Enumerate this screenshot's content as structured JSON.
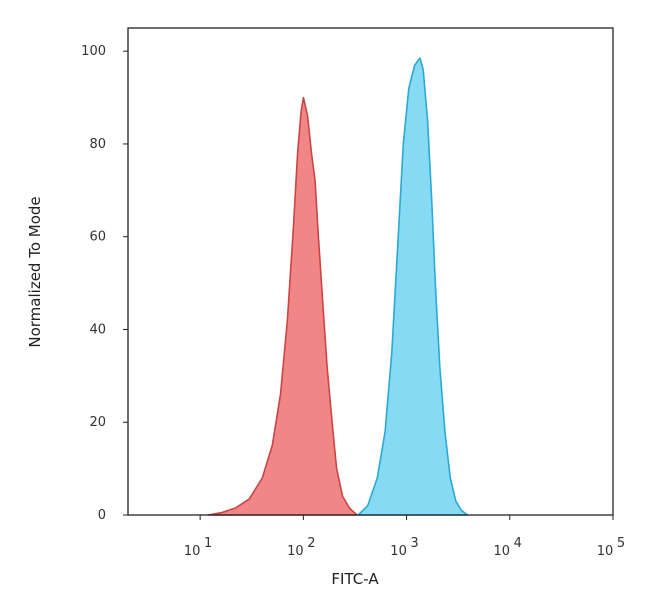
{
  "chart_data": {
    "type": "area",
    "xlabel": "FITC-A",
    "ylabel": "Normalized To Mode",
    "x_scale": "log",
    "xlim": [
      2,
      100000
    ],
    "ylim": [
      0,
      105
    ],
    "grid": false,
    "legend": "none",
    "y_ticks": [
      {
        "value": 0,
        "label": "0"
      },
      {
        "value": 20,
        "label": "20"
      },
      {
        "value": 40,
        "label": "40"
      },
      {
        "value": 60,
        "label": "60"
      },
      {
        "value": 80,
        "label": "80"
      },
      {
        "value": 100,
        "label": "100"
      }
    ],
    "x_ticks": [
      {
        "value": 10,
        "base": "10",
        "exp": "1"
      },
      {
        "value": 100,
        "base": "10",
        "exp": "2"
      },
      {
        "value": 1000,
        "base": "10",
        "exp": "3"
      },
      {
        "value": 10000,
        "base": "10",
        "exp": "4"
      },
      {
        "value": 100000,
        "base": "10",
        "exp": "5"
      }
    ],
    "series": [
      {
        "color": "#f08080",
        "stroke": "#cc4444",
        "points": [
          [
            12,
            0
          ],
          [
            16,
            0.5
          ],
          [
            22,
            1.5
          ],
          [
            30,
            3.5
          ],
          [
            40,
            8
          ],
          [
            50,
            15
          ],
          [
            60,
            26
          ],
          [
            70,
            42
          ],
          [
            80,
            62
          ],
          [
            88,
            78
          ],
          [
            95,
            87
          ],
          [
            100,
            90
          ],
          [
            105,
            88
          ],
          [
            110,
            86
          ],
          [
            120,
            78
          ],
          [
            130,
            72
          ],
          [
            140,
            60
          ],
          [
            155,
            45
          ],
          [
            170,
            32
          ],
          [
            190,
            20
          ],
          [
            210,
            10
          ],
          [
            240,
            4
          ],
          [
            280,
            1.5
          ],
          [
            330,
            0
          ]
        ]
      },
      {
        "color": "#7fd8f2",
        "stroke": "#2aa9d6",
        "points": [
          [
            340,
            0
          ],
          [
            420,
            2
          ],
          [
            520,
            8
          ],
          [
            620,
            18
          ],
          [
            720,
            35
          ],
          [
            820,
            58
          ],
          [
            930,
            80
          ],
          [
            1050,
            92
          ],
          [
            1200,
            97
          ],
          [
            1350,
            98.5
          ],
          [
            1450,
            96
          ],
          [
            1600,
            85
          ],
          [
            1750,
            68
          ],
          [
            1900,
            50
          ],
          [
            2100,
            32
          ],
          [
            2350,
            18
          ],
          [
            2650,
            8
          ],
          [
            3000,
            3
          ],
          [
            3400,
            1
          ],
          [
            3900,
            0
          ]
        ]
      }
    ]
  }
}
